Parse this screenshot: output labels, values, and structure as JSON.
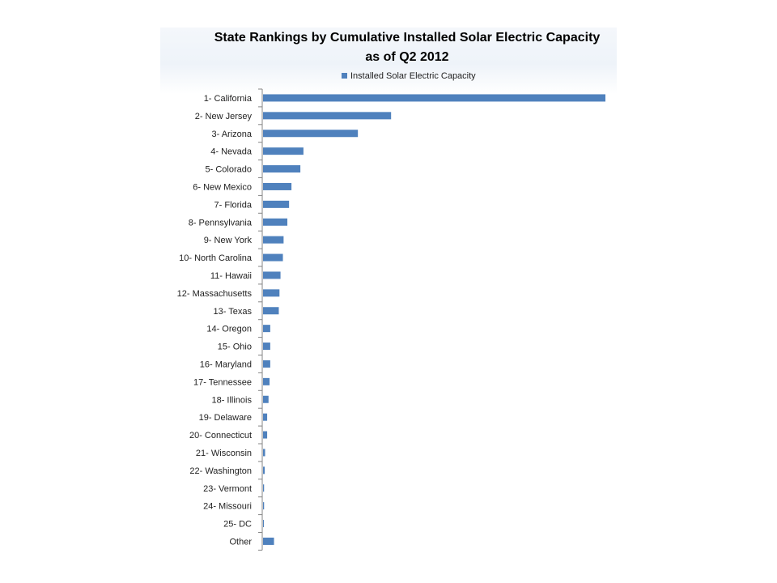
{
  "chart_data": {
    "type": "bar",
    "orientation": "horizontal",
    "title": "State Rankings by  Cumulative Installed Solar Electric Capacity as of Q2 2012",
    "title_lines": [
      "State Rankings by  Cumulative Installed Solar Electric Capacity",
      "as of Q2 2012"
    ],
    "legend": [
      "Installed Solar Electric Capacity"
    ],
    "legend_position": "top",
    "series_color": "#4f81bd",
    "grid": false,
    "xlim": [
      0,
      1000
    ],
    "categories": [
      "1- California",
      "2- New Jersey",
      "3- Arizona",
      "4- Nevada",
      "5- Colorado",
      "6- New Mexico",
      "7- Florida",
      "8- Pennsylvania",
      "9- New York",
      "10- North Carolina",
      "11- Hawaii",
      "12- Massachusetts",
      "13- Texas",
      "14- Oregon",
      "15- Ohio",
      "16- Maryland",
      "17- Tennessee",
      "18- Illinois",
      "19- Delaware",
      "20- Connecticut",
      "21- Wisconsin",
      "22- Washington",
      "23- Vermont",
      "24- Missouri",
      "25- DC",
      "Other"
    ],
    "series": [
      {
        "name": "Installed Solar Electric Capacity",
        "values": [
          1000,
          374,
          277,
          118,
          109,
          83,
          76,
          71,
          60,
          58,
          51,
          48,
          46,
          21,
          21,
          21,
          19,
          16,
          12,
          12,
          6,
          5,
          3,
          3,
          2,
          32
        ]
      }
    ]
  }
}
